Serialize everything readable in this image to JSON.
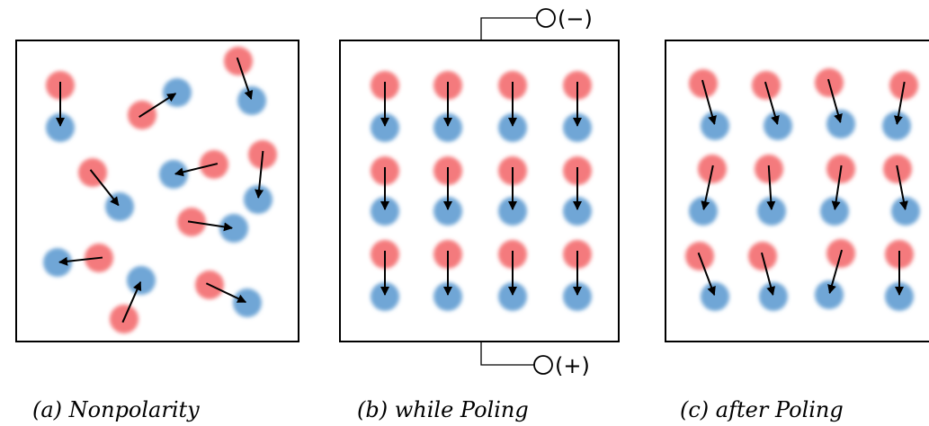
{
  "panels": [
    {
      "caption": "(a) Nonpolarity"
    },
    {
      "caption": "(b) while Poling"
    },
    {
      "caption": "(c) after Poling"
    }
  ],
  "electrodes": {
    "top": "(−)",
    "bottom": "(+)"
  }
}
